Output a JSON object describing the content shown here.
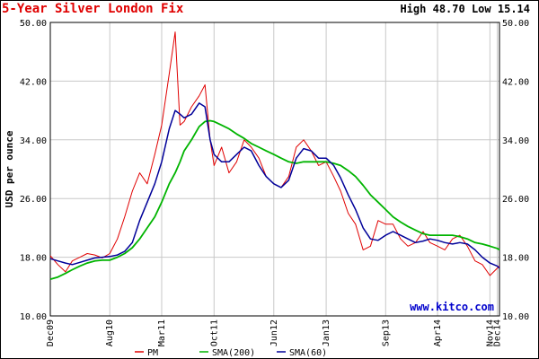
{
  "header": {
    "title": "5-Year Silver London Fix",
    "high_label": "High",
    "high_value": "48.70",
    "low_label": "Low",
    "low_value": "15.14"
  },
  "watermark": "www.kitco.com",
  "colors": {
    "pm": "#e00000",
    "sma200": "#00b400",
    "sma60": "#000099",
    "grid": "#c8c8c8"
  },
  "chart_data": {
    "type": "line",
    "title": "5-Year Silver London Fix",
    "ylabel": "USD per ounce",
    "xlabel": "",
    "ylim": [
      10,
      50
    ],
    "yticks": [
      10.0,
      18.0,
      26.0,
      34.0,
      42.0,
      50.0
    ],
    "ytick_labels": [
      "10.00",
      "18.00",
      "26.00",
      "34.00",
      "42.00",
      "50.00"
    ],
    "xtick_labels": [
      "Dec09",
      "Aug10",
      "Mar11",
      "Oct11",
      "Jun12",
      "Jan13",
      "Sep13",
      "Apr14",
      "Nov14",
      "Dec14"
    ],
    "xtick_dates": [
      "2009-12-01",
      "2010-08-01",
      "2011-03-01",
      "2011-10-01",
      "2012-06-01",
      "2013-01-01",
      "2013-09-01",
      "2014-04-01",
      "2014-11-01",
      "2014-12-01"
    ],
    "x": [
      "2009-12-01",
      "2010-01-01",
      "2010-02-01",
      "2010-03-01",
      "2010-04-01",
      "2010-05-01",
      "2010-06-01",
      "2010-07-01",
      "2010-08-01",
      "2010-09-01",
      "2010-10-01",
      "2010-11-01",
      "2010-12-01",
      "2011-01-01",
      "2011-02-01",
      "2011-03-01",
      "2011-04-01",
      "2011-04-25",
      "2011-05-15",
      "2011-06-01",
      "2011-07-01",
      "2011-08-01",
      "2011-08-25",
      "2011-09-15",
      "2011-10-01",
      "2011-11-01",
      "2011-12-01",
      "2012-01-01",
      "2012-02-01",
      "2012-03-01",
      "2012-04-01",
      "2012-05-01",
      "2012-06-01",
      "2012-07-01",
      "2012-08-01",
      "2012-09-01",
      "2012-10-01",
      "2012-11-01",
      "2012-12-01",
      "2013-01-01",
      "2013-02-01",
      "2013-03-01",
      "2013-04-01",
      "2013-05-01",
      "2013-06-01",
      "2013-07-01",
      "2013-08-01",
      "2013-09-01",
      "2013-10-01",
      "2013-11-01",
      "2013-12-01",
      "2014-01-01",
      "2014-02-01",
      "2014-03-01",
      "2014-04-01",
      "2014-05-01",
      "2014-06-01",
      "2014-07-01",
      "2014-08-01",
      "2014-09-01",
      "2014-10-01",
      "2014-11-01",
      "2014-12-01",
      "2014-12-10"
    ],
    "series": [
      {
        "name": "PM",
        "values": [
          18.2,
          17.0,
          16.0,
          17.5,
          18.0,
          18.5,
          18.3,
          17.9,
          18.5,
          20.5,
          23.5,
          27.0,
          29.5,
          28.0,
          32.0,
          36.0,
          43.0,
          48.7,
          36.0,
          36.5,
          38.5,
          40.0,
          41.5,
          34.0,
          30.5,
          33.0,
          29.5,
          31.0,
          34.0,
          33.0,
          31.5,
          29.0,
          28.0,
          27.5,
          29.0,
          33.0,
          34.0,
          32.5,
          30.5,
          31.0,
          29.0,
          27.0,
          24.0,
          22.5,
          19.0,
          19.5,
          23.0,
          22.5,
          22.5,
          20.5,
          19.5,
          20.0,
          21.5,
          20.0,
          19.5,
          19.0,
          20.5,
          21.0,
          19.5,
          17.5,
          17.0,
          15.5,
          16.5,
          16.8
        ]
      },
      {
        "name": "SMA(200)",
        "values": [
          15.0,
          15.3,
          15.8,
          16.3,
          16.8,
          17.2,
          17.5,
          17.6,
          17.6,
          18.0,
          18.5,
          19.3,
          20.5,
          22.0,
          23.5,
          25.5,
          28.0,
          29.5,
          31.0,
          32.5,
          34.0,
          35.8,
          36.5,
          36.6,
          36.5,
          36.0,
          35.5,
          34.8,
          34.2,
          33.5,
          33.0,
          32.5,
          32.0,
          31.5,
          31.0,
          30.8,
          31.0,
          31.0,
          31.0,
          31.0,
          30.8,
          30.5,
          29.8,
          29.0,
          27.8,
          26.5,
          25.5,
          24.5,
          23.5,
          22.8,
          22.2,
          21.7,
          21.2,
          21.0,
          21.0,
          21.0,
          21.0,
          20.8,
          20.5,
          20.0,
          19.8,
          19.5,
          19.2,
          19.0
        ]
      },
      {
        "name": "SMA(60)",
        "values": [
          17.8,
          17.5,
          17.2,
          17.0,
          17.3,
          17.6,
          17.9,
          18.0,
          18.1,
          18.3,
          18.8,
          20.0,
          23.0,
          25.5,
          28.0,
          31.0,
          35.5,
          38.0,
          37.5,
          37.0,
          37.5,
          39.0,
          38.5,
          34.0,
          32.0,
          31.0,
          31.0,
          32.0,
          33.0,
          32.5,
          30.5,
          29.0,
          28.0,
          27.5,
          28.5,
          31.5,
          32.8,
          32.5,
          31.5,
          31.5,
          30.5,
          28.8,
          26.5,
          24.5,
          22.0,
          20.5,
          20.3,
          21.0,
          21.5,
          21.0,
          20.5,
          20.0,
          20.2,
          20.5,
          20.3,
          20.0,
          19.8,
          20.0,
          19.8,
          19.0,
          18.0,
          17.2,
          16.8,
          16.5
        ]
      }
    ],
    "legend": {
      "position": "bottom",
      "entries": [
        "PM",
        "SMA(200)",
        "SMA(60)"
      ]
    },
    "grid": true
  }
}
